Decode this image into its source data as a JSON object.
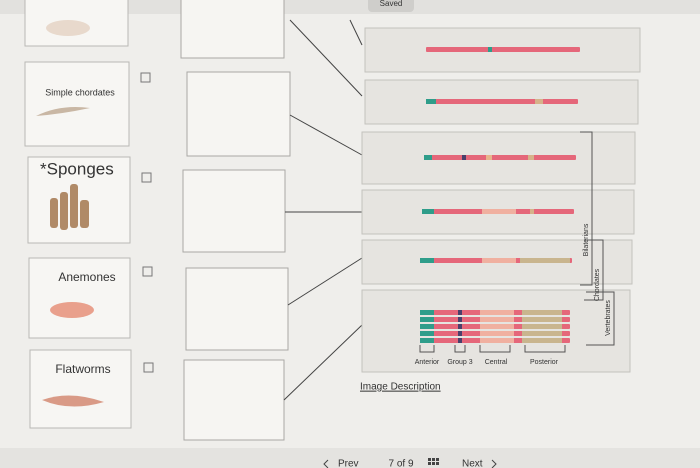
{
  "header": {
    "status": "Saved"
  },
  "cards": [
    {
      "label": "Simple chordates"
    },
    {
      "label": "*Sponges"
    },
    {
      "label": "Anemones"
    },
    {
      "label": "Flatworms"
    }
  ],
  "panel": {
    "brackets": [
      "Bilaterians",
      "Chordates",
      "Vertebrates"
    ],
    "axis_labels": [
      "Anterior",
      "Group 3",
      "Central",
      "Posterior"
    ],
    "link": "Image Description"
  },
  "footer": {
    "prev": "Prev",
    "page": "7 of 9",
    "next": "Next"
  }
}
